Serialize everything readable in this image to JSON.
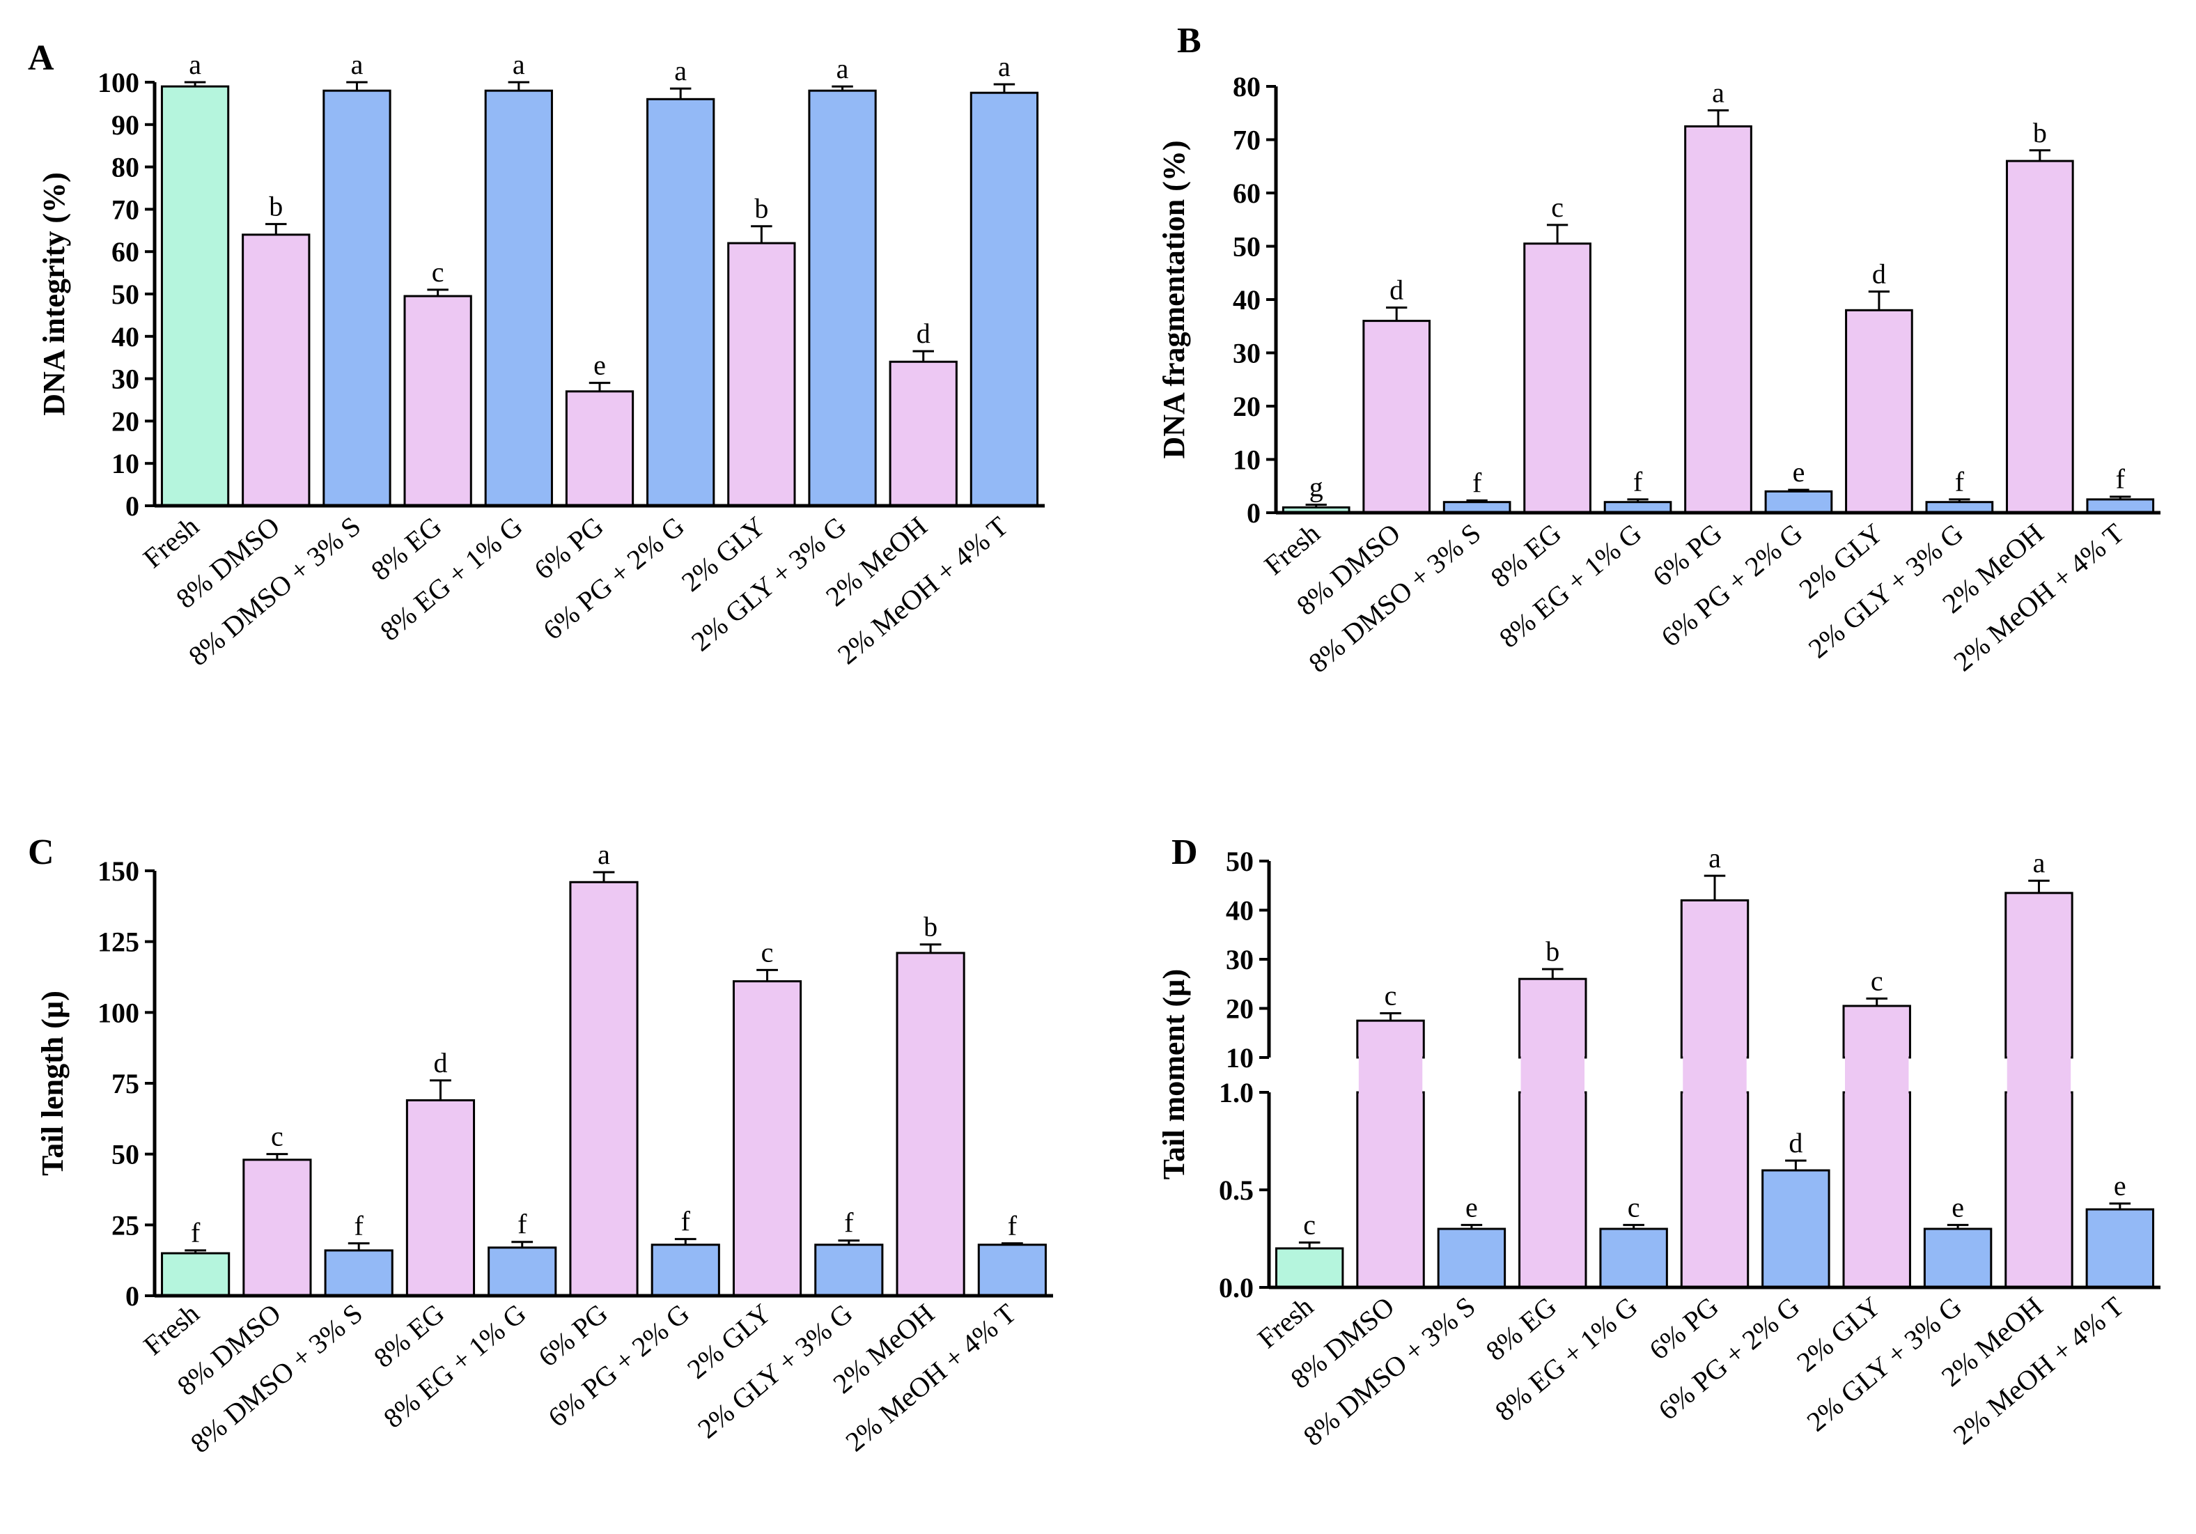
{
  "colors": {
    "fresh": "#b5f5dd",
    "cryo": "#edc8f3",
    "additive": "#93b9f6",
    "axis": "#000000"
  },
  "chart_data": [
    {
      "type": "bar",
      "panel": "A",
      "ylabel": "DNA integrity (%)",
      "ylim": [
        0,
        100
      ],
      "yticks": [
        "0",
        "10",
        "20",
        "30",
        "40",
        "50",
        "60",
        "70",
        "80",
        "90",
        "100"
      ],
      "categories": [
        "Fresh",
        "8% DMSO",
        "8% DMSO + 3% S",
        "8% EG",
        "8% EG + 1% G",
        "6% PG",
        "6% PG + 2% G",
        "2% GLY",
        "2% GLY + 3% G",
        "2% MeOH",
        "2% MeOH + 4% T"
      ],
      "groups": [
        "fresh",
        "cryo",
        "additive",
        "cryo",
        "additive",
        "cryo",
        "additive",
        "cryo",
        "additive",
        "cryo",
        "additive"
      ],
      "values": [
        99,
        64,
        98,
        49.5,
        98,
        27,
        96,
        62,
        98,
        34,
        97.5
      ],
      "errors": [
        1,
        2.5,
        2,
        1.5,
        2,
        2,
        2.5,
        4,
        1,
        2.5,
        2
      ],
      "letters": [
        "a",
        "b",
        "a",
        "c",
        "a",
        "e",
        "a",
        "b",
        "a",
        "d",
        "a"
      ]
    },
    {
      "type": "bar",
      "panel": "B",
      "ylabel": "DNA fragmentation (%)",
      "ylim": [
        0,
        80
      ],
      "yticks": [
        "0",
        "10",
        "20",
        "30",
        "40",
        "50",
        "60",
        "70",
        "80"
      ],
      "categories": [
        "Fresh",
        "8% DMSO",
        "8% DMSO + 3% S",
        "8% EG",
        "8% EG + 1% G",
        "6% PG",
        "6% PG + 2% G",
        "2% GLY",
        "2% GLY + 3% G",
        "2% MeOH",
        "2% MeOH + 4% T"
      ],
      "groups": [
        "fresh",
        "cryo",
        "additive",
        "cryo",
        "additive",
        "cryo",
        "additive",
        "cryo",
        "additive",
        "cryo",
        "additive"
      ],
      "values": [
        1,
        36,
        2,
        50.5,
        2,
        72.5,
        4,
        38,
        2,
        66,
        2.5
      ],
      "errors": [
        0.5,
        2.5,
        0.3,
        3.5,
        0.5,
        3,
        0.3,
        3.5,
        0.5,
        2,
        0.5
      ],
      "letters": [
        "g",
        "d",
        "f",
        "c",
        "f",
        "a",
        "e",
        "d",
        "f",
        "b",
        "f"
      ]
    },
    {
      "type": "bar",
      "panel": "C",
      "ylabel": "Tail length (µ)",
      "ylim": [
        0,
        150
      ],
      "yticks": [
        "0",
        "25",
        "50",
        "75",
        "100",
        "125",
        "150"
      ],
      "categories": [
        "Fresh",
        "8% DMSO",
        "8% DMSO + 3% S",
        "8% EG",
        "8% EG + 1% G",
        "6% PG",
        "6% PG + 2% G",
        "2% GLY",
        "2% GLY + 3% G",
        "2% MeOH",
        "2% MeOH + 4% T"
      ],
      "groups": [
        "fresh",
        "cryo",
        "additive",
        "cryo",
        "additive",
        "cryo",
        "additive",
        "cryo",
        "additive",
        "cryo",
        "additive"
      ],
      "values": [
        15,
        48,
        16,
        69,
        17,
        146,
        18,
        111,
        18,
        121,
        18
      ],
      "errors": [
        1,
        2,
        2.5,
        7,
        2,
        3.5,
        2,
        4,
        1.5,
        3,
        0.5
      ],
      "letters": [
        "f",
        "c",
        "f",
        "d",
        "f",
        "a",
        "f",
        "c",
        "f",
        "b",
        "f"
      ]
    },
    {
      "type": "bar",
      "panel": "D",
      "ylabel": "Tail moment (µ)",
      "axis_break": true,
      "lower_ylim": [
        0,
        1.0
      ],
      "lower_yticks": [
        "0.0",
        "0.5",
        "1.0"
      ],
      "upper_ylim": [
        10,
        50
      ],
      "upper_yticks": [
        "10",
        "20",
        "30",
        "40",
        "50"
      ],
      "categories": [
        "Fresh",
        "8% DMSO",
        "8% DMSO + 3% S",
        "8% EG",
        "8% EG + 1% G",
        "6% PG",
        "6% PG + 2% G",
        "2% GLY",
        "2% GLY + 3% G",
        "2% MeOH",
        "2% MeOH + 4% T"
      ],
      "groups": [
        "fresh",
        "cryo",
        "additive",
        "cryo",
        "additive",
        "cryo",
        "additive",
        "cryo",
        "additive",
        "cryo",
        "additive"
      ],
      "values": [
        0.2,
        17.5,
        0.3,
        26,
        0.3,
        42,
        0.6,
        20.5,
        0.3,
        43.5,
        0.4
      ],
      "errors": [
        0.03,
        1.5,
        0.02,
        2,
        0.02,
        5,
        0.05,
        1.5,
        0.02,
        2.5,
        0.03
      ],
      "letters": [
        "c",
        "c",
        "e",
        "b",
        "c",
        "a",
        "d",
        "c",
        "e",
        "a",
        "e"
      ]
    }
  ]
}
